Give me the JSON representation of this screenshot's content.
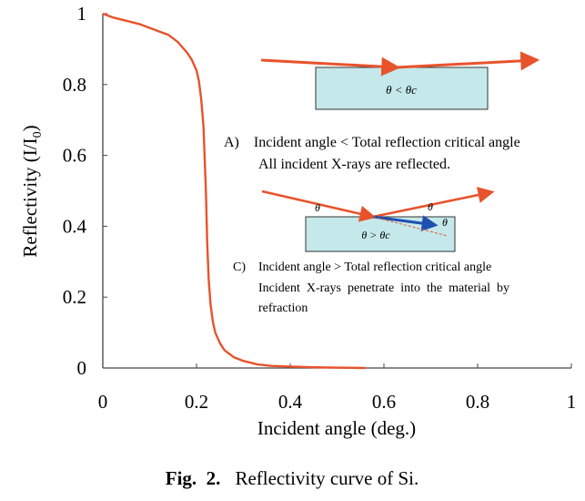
{
  "chart_data": {
    "type": "line",
    "title": "",
    "xlabel": "Incident angle (deg.)",
    "ylabel_main": "Reflectivity (I/I",
    "ylabel_sub": "0",
    "ylabel_close": ")",
    "xlim": [
      0,
      1
    ],
    "ylim": [
      0,
      1
    ],
    "x_ticks": [
      0,
      0.2,
      0.4,
      0.6,
      0.8,
      1
    ],
    "x_tick_labels": [
      "0",
      "0.2",
      "0.4",
      "0.6",
      "0.8",
      "1"
    ],
    "y_ticks": [
      0,
      0.2,
      0.4,
      0.6,
      0.8,
      1
    ],
    "y_tick_labels": [
      "0",
      "0.2",
      "0.4",
      "0.6",
      "0.8",
      "1"
    ],
    "grid": false,
    "series": [
      {
        "color": "#e8532b",
        "x": [
          0.0,
          0.02,
          0.05,
          0.08,
          0.1,
          0.12,
          0.14,
          0.16,
          0.17,
          0.18,
          0.19,
          0.2,
          0.205,
          0.21,
          0.215,
          0.22,
          0.223,
          0.226,
          0.23,
          0.235,
          0.24,
          0.25,
          0.26,
          0.28,
          0.3,
          0.33,
          0.36,
          0.4,
          0.45,
          0.5,
          0.56
        ],
        "y": [
          1.0,
          0.99,
          0.98,
          0.97,
          0.96,
          0.95,
          0.94,
          0.92,
          0.905,
          0.89,
          0.87,
          0.84,
          0.81,
          0.76,
          0.68,
          0.5,
          0.35,
          0.25,
          0.18,
          0.13,
          0.1,
          0.07,
          0.05,
          0.03,
          0.02,
          0.01,
          0.006,
          0.004,
          0.002,
          0.001,
          0.0
        ]
      }
    ]
  },
  "annotations": {
    "diagram_a": {
      "theta_label": "θ < θc",
      "caption_line1": "A)    Incident angle < Total reflection critical angle",
      "caption_line2": "All incident X-rays are reflected."
    },
    "diagram_c": {
      "theta_in": "θ",
      "theta_out": "θ",
      "theta_refr": "θ",
      "theta_label": "θ > θc",
      "caption_line1": "C)    Incident angle > Total reflection critical angle",
      "caption_line2": "Incident  X-rays  penetrate  into  the  material  by",
      "caption_line3": "refraction"
    }
  },
  "figure_caption": {
    "label": "Fig.  2.",
    "text": "Reflectivity curve of Si."
  },
  "colors": {
    "curve": "#e8532b",
    "arrow": "#e8532b",
    "refracted_arrow": "#1f4fb0",
    "slab_fill": "#c5e8ea",
    "axis": "#444444"
  }
}
